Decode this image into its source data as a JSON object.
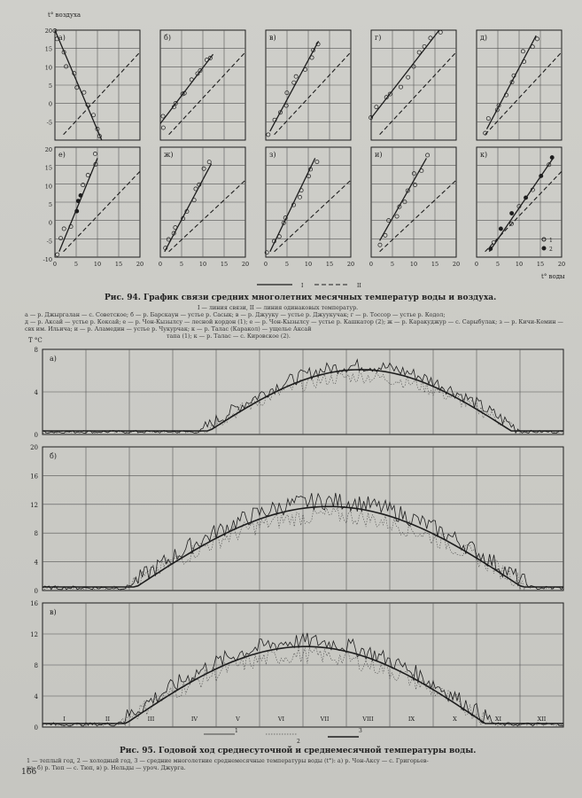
{
  "page": {
    "number": "166"
  },
  "fig94": {
    "y_axis_label": "t° воздуха",
    "x_axis_label": "t° воды",
    "y_ticks": [
      "20",
      "15",
      "10",
      "5",
      "0",
      "-5",
      "-10"
    ],
    "x_ticks": [
      "0",
      "5",
      "10",
      "15",
      "20"
    ],
    "panel_labels": [
      "а)",
      "б)",
      "в)",
      "г)",
      "д)",
      "е)",
      "ж)",
      "з)",
      "и)",
      "к)"
    ],
    "key": {
      "line1": "I",
      "line2": "II",
      "sym1": "1",
      "sym2": "2"
    },
    "caption": "Рис. 94. График связи средних многолетних месячных температур воды и воздуха.",
    "legend_lines": [
      "I — линия связи, II — линия одинаковых температур.",
      "а — р. Джыргалан — с. Советское; б — р. Барскаун — устье р. Сасык; в — р. Джууку — устье р. Джуукучак; г — р. Тоссор — устье р. Кодол;",
      "д — р. Аксай — устье р. Коксай; е — р. Чон-Кызылсу — лесной кордон (1); е — р. Чон-Кызылсу — устье р. Кашкатор (2); ж — р. Каракуджур — с. Сарыбулак; з — р. Кичи-Кемин — свх им. Ильича; и — р. Аламедин — устье р. Чукурчак; к — р. Талас (Каракол) — ущелье Аксай",
      "тапа (1); к — р. Талас — с. Кировское (2)."
    ]
  },
  "fig95": {
    "y_axis_label": "T °C",
    "panels": [
      {
        "label": "а)",
        "y_ticks": [
          "8",
          "4",
          "0"
        ]
      },
      {
        "label": "б)",
        "y_ticks": [
          "20",
          "16",
          "12",
          "8",
          "4",
          "0"
        ]
      },
      {
        "label": "в)",
        "y_ticks": [
          "16",
          "12",
          "8",
          "4",
          "0"
        ]
      }
    ],
    "months": [
      "I",
      "II",
      "III",
      "IV",
      "V",
      "VI",
      "VII",
      "VIII",
      "IX",
      "X",
      "XI",
      "XII"
    ],
    "key": {
      "n1": "1",
      "n2": "2",
      "n3": "3"
    },
    "caption": "Рис. 95. Годовой ход среднесуточной и среднемесячной температуры воды.",
    "legend_lines": [
      "1 — теплый год, 2 — холодный год, 3 — средние многолетние среднемесячные температуры воды (t°): а) р. Чон-Аксу — с. Григорьев-",
      "ка; б) р. Тюп — с. Тюп, в) р. Нельды — уроч. Джурга."
    ]
  },
  "colors": {
    "ink": "#1d1d1d",
    "paper": "#c9c9c4",
    "grid": "#555555"
  }
}
